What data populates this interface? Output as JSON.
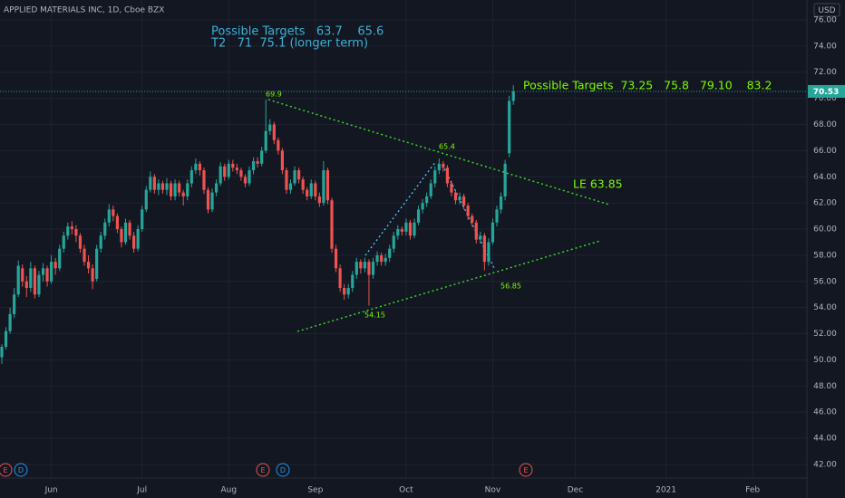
{
  "chart_data": {
    "type": "candlestick",
    "title": "APPLIED MATERIALS INC, 1D, Cboe BZX",
    "currency": "USD",
    "up_color": "#26a69a",
    "down_color": "#ef5350",
    "grid": true,
    "last_price": 70.53,
    "xlim": [
      -0.44,
      195.16
    ],
    "ylim": [
      40.96,
      77.52
    ],
    "xticks": [
      {
        "value": 12,
        "label": "Jun"
      },
      {
        "value": 34,
        "label": "Jul"
      },
      {
        "value": 55,
        "label": "Aug"
      },
      {
        "value": 76,
        "label": "Sep"
      },
      {
        "value": 98,
        "label": "Oct"
      },
      {
        "value": 119,
        "label": "Nov"
      },
      {
        "value": 139,
        "label": "Dec"
      },
      {
        "value": 161,
        "label": "2021"
      },
      {
        "value": 182,
        "label": "Feb"
      }
    ],
    "yticks": [
      {
        "value": 76,
        "label": "76.00"
      },
      {
        "value": 74,
        "label": "74.00"
      },
      {
        "value": 72,
        "label": "72.00"
      },
      {
        "value": 70,
        "label": "70.00"
      },
      {
        "value": 68,
        "label": "68.00"
      },
      {
        "value": 66,
        "label": "66.00"
      },
      {
        "value": 64,
        "label": "64.00"
      },
      {
        "value": 62,
        "label": "62.00"
      },
      {
        "value": 60,
        "label": "60.00"
      },
      {
        "value": 58,
        "label": "58.00"
      },
      {
        "value": 56,
        "label": "56.00"
      },
      {
        "value": 54,
        "label": "54.00"
      },
      {
        "value": 52,
        "label": "52.00"
      },
      {
        "value": 50,
        "label": "50.00"
      },
      {
        "value": 48,
        "label": "48.00"
      },
      {
        "value": 46,
        "label": "46.00"
      },
      {
        "value": 44,
        "label": "44.00"
      },
      {
        "value": 42,
        "label": "42.00"
      }
    ],
    "annotations": [
      "Possible Targets   63.7    65.6",
      "T2   71  75.1 (longer term)",
      "Possible Targets  73.25   75.8   79.10    83.2",
      "LE 63.85",
      "69.9",
      "65.4",
      "54.15",
      "56.85"
    ],
    "events": [
      "E",
      "D",
      "E",
      "D",
      "E"
    ],
    "candles": [
      [
        50.2,
        51.2,
        49.7,
        51
      ],
      [
        51,
        52.5,
        50.8,
        52.2
      ],
      [
        52.2,
        54,
        52,
        53.5
      ],
      [
        53.5,
        55.5,
        53.2,
        55
      ],
      [
        55,
        57.6,
        54.8,
        57.2
      ],
      [
        57,
        57.3,
        55.6,
        56
      ],
      [
        56,
        56.4,
        54.8,
        55.5
      ],
      [
        55.5,
        57.5,
        55.2,
        57
      ],
      [
        57,
        57.2,
        54.7,
        55
      ],
      [
        55,
        56.8,
        54.8,
        56.5
      ],
      [
        56.5,
        57.4,
        56,
        57
      ],
      [
        57,
        57.2,
        55.6,
        56
      ],
      [
        56,
        58,
        55.8,
        57.5
      ],
      [
        57.5,
        57.8,
        56.5,
        57
      ],
      [
        57,
        58.8,
        56.8,
        58.5
      ],
      [
        58.5,
        59.8,
        58.2,
        59.5
      ],
      [
        59.5,
        60.5,
        59.2,
        60.2
      ],
      [
        60.2,
        60.6,
        59.6,
        60
      ],
      [
        60,
        60.3,
        59,
        59.5
      ],
      [
        59.5,
        59.7,
        58.2,
        58.5
      ],
      [
        58.5,
        58.8,
        57.2,
        57.5
      ],
      [
        57.5,
        58,
        56.6,
        57
      ],
      [
        57,
        57.3,
        55.4,
        56
      ],
      [
        56.2,
        58.8,
        56,
        58.5
      ],
      [
        58.5,
        59.8,
        58.2,
        59.5
      ],
      [
        59.5,
        60.8,
        59.2,
        60.5
      ],
      [
        60.5,
        61.9,
        60.2,
        61.5
      ],
      [
        61.5,
        61.8,
        60.6,
        61
      ],
      [
        61,
        61.2,
        59.7,
        60
      ],
      [
        60,
        60.2,
        58.6,
        59
      ],
      [
        59,
        60.8,
        58.8,
        60.5
      ],
      [
        60.5,
        60.7,
        59.2,
        59.5
      ],
      [
        59.5,
        59.8,
        58.2,
        58.5
      ],
      [
        58.5,
        60.3,
        58.3,
        60
      ],
      [
        60,
        61.8,
        59.8,
        61.5
      ],
      [
        61.5,
        63.3,
        61.3,
        63
      ],
      [
        63,
        64.4,
        62.8,
        64
      ],
      [
        64,
        64.2,
        62.7,
        63
      ],
      [
        63,
        63.8,
        62.6,
        63.5
      ],
      [
        63.5,
        63.7,
        62.7,
        63
      ],
      [
        63,
        63.9,
        62.6,
        63.5
      ],
      [
        63.5,
        63.7,
        62.2,
        62.5
      ],
      [
        62.5,
        63.8,
        62.2,
        63.5
      ],
      [
        63.5,
        63.7,
        62.5,
        62.8
      ],
      [
        62.8,
        63,
        61.8,
        62.5
      ],
      [
        62.5,
        63.8,
        62.2,
        63.5
      ],
      [
        63.5,
        64.8,
        63.2,
        64.5
      ],
      [
        64.5,
        65.4,
        64.2,
        65
      ],
      [
        65,
        65.2,
        64.1,
        64.5
      ],
      [
        64.5,
        64.7,
        62.7,
        63
      ],
      [
        63,
        63.2,
        61.2,
        61.5
      ],
      [
        61.5,
        63.1,
        61.3,
        62.8
      ],
      [
        62.8,
        63.8,
        62.5,
        63.5
      ],
      [
        63.5,
        65.1,
        63.3,
        64.8
      ],
      [
        64.8,
        65,
        63.7,
        64
      ],
      [
        64,
        65.3,
        63.8,
        65
      ],
      [
        65,
        65.3,
        64.4,
        64.7
      ],
      [
        64.7,
        65,
        64.2,
        64.5
      ],
      [
        64.5,
        64.7,
        63.7,
        64
      ],
      [
        64,
        64.2,
        63.2,
        63.5
      ],
      [
        63.5,
        64.8,
        63.3,
        64.5
      ],
      [
        64.5,
        65.5,
        64.2,
        65.2
      ],
      [
        65.2,
        65.5,
        64.7,
        65
      ],
      [
        65,
        66.3,
        64.8,
        66
      ],
      [
        66,
        69.9,
        65.8,
        67.5
      ],
      [
        67.5,
        68.4,
        67.2,
        68
      ],
      [
        68,
        68.2,
        66.5,
        66.8
      ],
      [
        66.8,
        67,
        65.7,
        66
      ],
      [
        66,
        66.2,
        64.2,
        64.5
      ],
      [
        64.5,
        64.7,
        62.7,
        63
      ],
      [
        63,
        63.8,
        62.7,
        63.5
      ],
      [
        63.5,
        64.8,
        63.3,
        64.5
      ],
      [
        64.5,
        64.7,
        63.5,
        63.8
      ],
      [
        63.8,
        64,
        62.7,
        63
      ],
      [
        63,
        63.2,
        62.2,
        62.5
      ],
      [
        62.5,
        63.8,
        62.3,
        63.5
      ],
      [
        63.5,
        63.7,
        62.2,
        62.5
      ],
      [
        62.5,
        62.8,
        61.7,
        62
      ],
      [
        62,
        65.2,
        61.8,
        64.5
      ],
      [
        64.5,
        64.7,
        61.9,
        62.2
      ],
      [
        62.2,
        62.4,
        58.2,
        58.5
      ],
      [
        58.5,
        58.8,
        56.7,
        57
      ],
      [
        57,
        57.3,
        55.2,
        55.5
      ],
      [
        55.5,
        55.8,
        54.6,
        55
      ],
      [
        55,
        55.8,
        54.7,
        55.5
      ],
      [
        55.5,
        56.8,
        55.2,
        56.5
      ],
      [
        56.5,
        57.8,
        56.2,
        57.5
      ],
      [
        57.5,
        57.7,
        56.6,
        57
      ],
      [
        57,
        57.8,
        56.7,
        57.5
      ],
      [
        57.5,
        57.7,
        54.15,
        56.5
      ],
      [
        56.5,
        57.8,
        56.2,
        57.5
      ],
      [
        57.5,
        58.3,
        57.2,
        58
      ],
      [
        58,
        58.2,
        57.2,
        57.5
      ],
      [
        57.5,
        58.1,
        57.2,
        57.8
      ],
      [
        57.8,
        58.8,
        57.5,
        58.5
      ],
      [
        58.5,
        59.8,
        58.2,
        59.5
      ],
      [
        59.5,
        60.3,
        59.2,
        60
      ],
      [
        60,
        60.2,
        59.5,
        59.8
      ],
      [
        59.8,
        60.8,
        59.5,
        60.5
      ],
      [
        60.5,
        60.7,
        59.2,
        59.5
      ],
      [
        59.5,
        60.8,
        59.3,
        60.5
      ],
      [
        60.5,
        61.8,
        60.3,
        61.5
      ],
      [
        61.5,
        62.3,
        61.2,
        62
      ],
      [
        62,
        62.8,
        61.7,
        62.5
      ],
      [
        62.5,
        63.8,
        62.3,
        63.5
      ],
      [
        63.5,
        64.8,
        63.2,
        64.5
      ],
      [
        64.5,
        65.4,
        64.2,
        65
      ],
      [
        65,
        65.2,
        64.4,
        64.7
      ],
      [
        64.7,
        64.9,
        63.2,
        63.5
      ],
      [
        63.5,
        63.7,
        62.5,
        62.8
      ],
      [
        62.8,
        63,
        61.9,
        62.2
      ],
      [
        62.2,
        62.8,
        61.9,
        62.5
      ],
      [
        62.5,
        62.7,
        61.5,
        61.8
      ],
      [
        61.8,
        62,
        60.7,
        61
      ],
      [
        61,
        61.2,
        60.2,
        60.5
      ],
      [
        60.5,
        60.7,
        58.9,
        59.2
      ],
      [
        59.2,
        59.8,
        58.9,
        59.5
      ],
      [
        59.5,
        59.7,
        56.85,
        57.5
      ],
      [
        57.5,
        59.3,
        57.2,
        59
      ],
      [
        59,
        60.8,
        58.8,
        60.5
      ],
      [
        60.5,
        61.8,
        60.2,
        61.5
      ],
      [
        61.5,
        62.8,
        61.2,
        62.5
      ],
      [
        62.5,
        65.3,
        62.2,
        65
      ],
      [
        65.8,
        70.2,
        65.5,
        69.8
      ],
      [
        69.8,
        71,
        69.5,
        70.53
      ]
    ]
  }
}
